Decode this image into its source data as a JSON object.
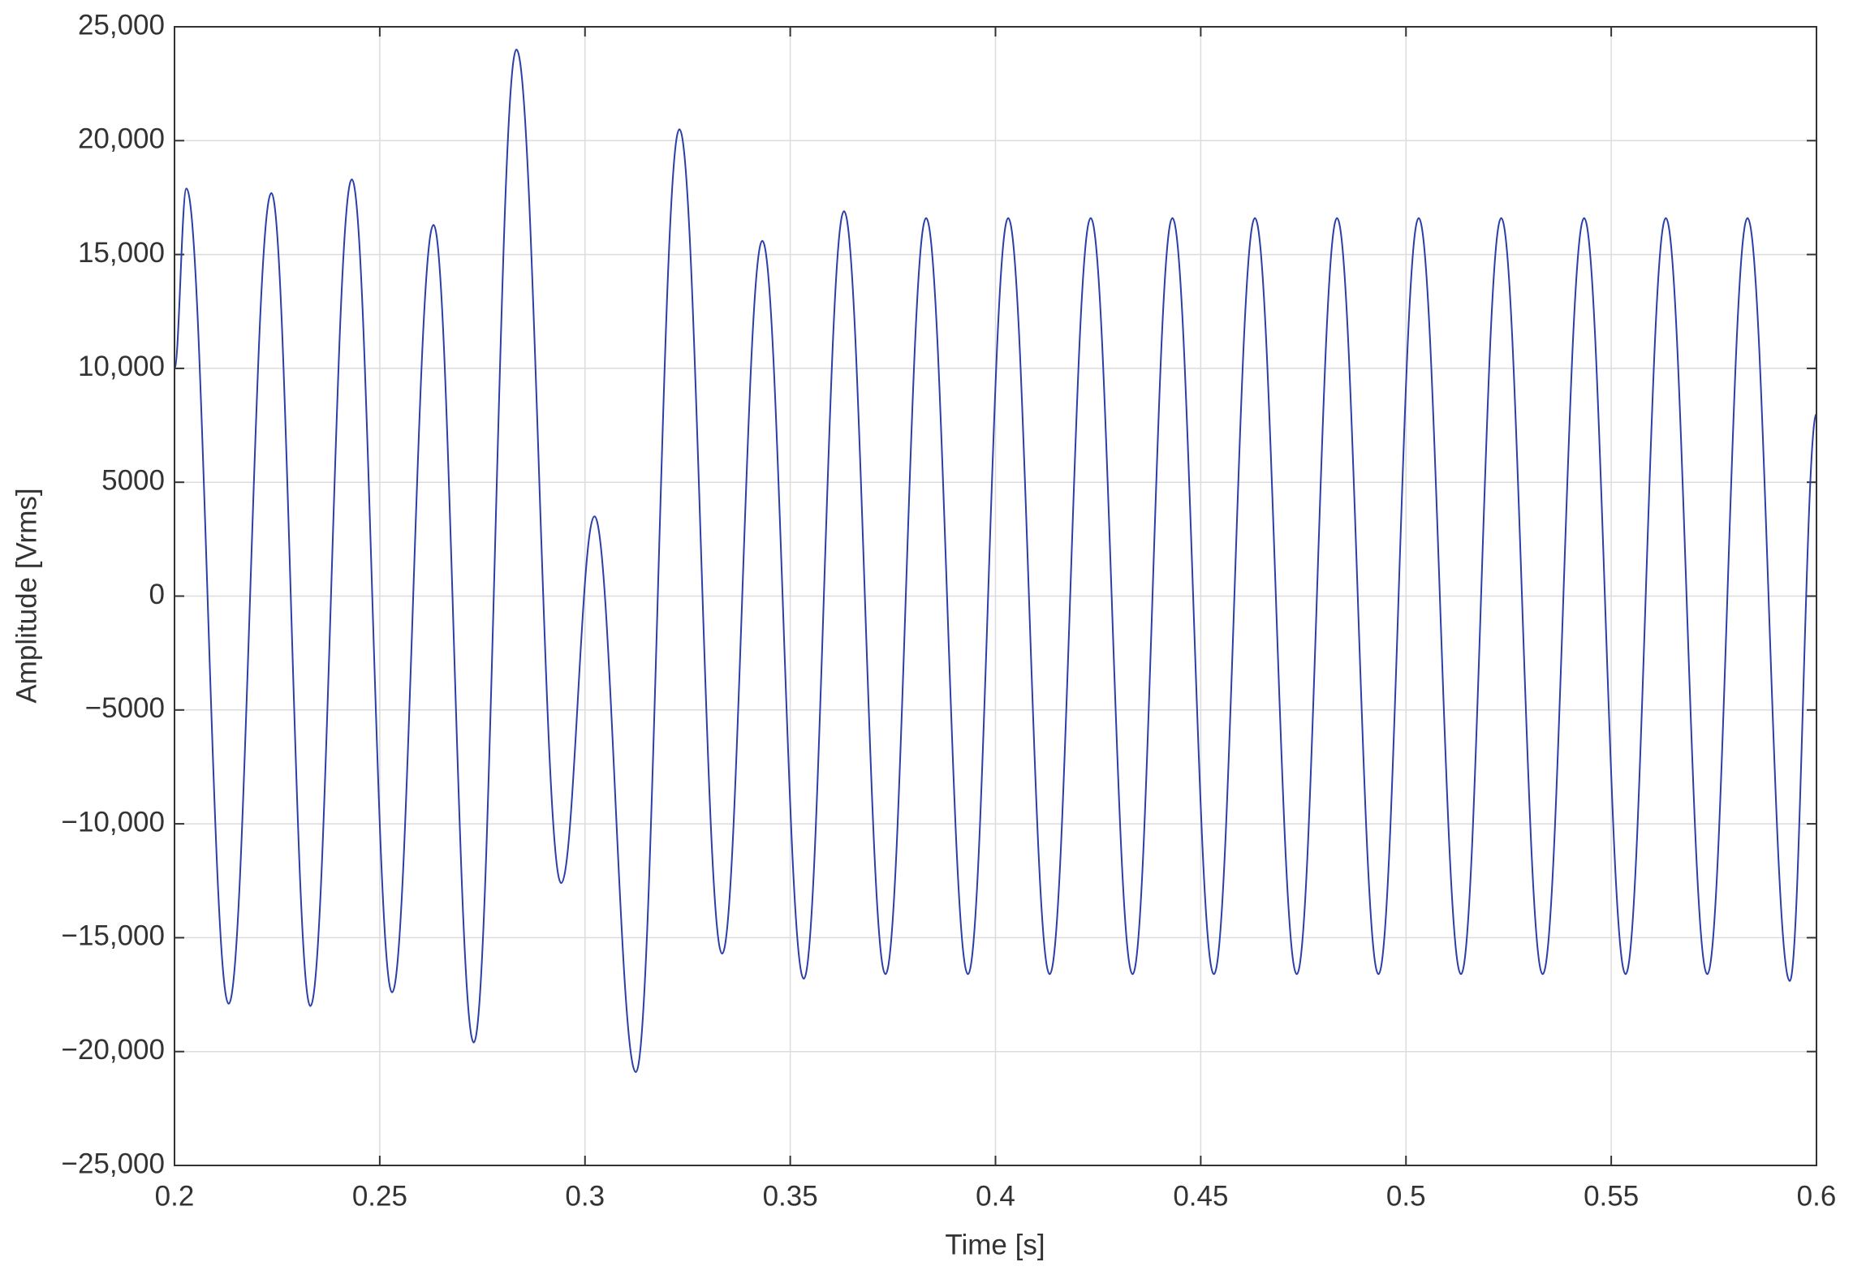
{
  "chart_data": {
    "type": "line",
    "x_label": "Time [s]",
    "y_label": "Amplitude [Vrms]",
    "x": [
      0.2,
      0.2029,
      0.2132,
      0.2236,
      0.2331,
      0.2432,
      0.253,
      0.2631,
      0.2729,
      0.2833,
      0.2942,
      0.3023,
      0.3124,
      0.323,
      0.3334,
      0.3432,
      0.3533,
      0.3631,
      0.3732,
      0.3831,
      0.3933,
      0.4031,
      0.4132,
      0.4232,
      0.4334,
      0.4431,
      0.4532,
      0.4632,
      0.4734,
      0.4832,
      0.4933,
      0.5031,
      0.5134,
      0.5232,
      0.5333,
      0.5434,
      0.5535,
      0.5633,
      0.5734,
      0.5832,
      0.5935,
      0.6
    ],
    "values": [
      10000,
      17900,
      -17900,
      17700,
      -18000,
      18300,
      -17400,
      16300,
      -19600,
      24000,
      -12600,
      3500,
      -20900,
      20500,
      -15700,
      15600,
      -16800,
      16900,
      -16600,
      16600,
      -16600,
      16600,
      -16600,
      16600,
      -16600,
      16600,
      -16600,
      16600,
      -16600,
      16600,
      -16600,
      16600,
      -16600,
      16600,
      -16600,
      16600,
      -16600,
      16600,
      -16600,
      16600,
      -16900,
      8000
    ],
    "color": "#2a3fa8",
    "xlim": [
      0.2,
      0.6
    ],
    "xticks": [
      0.2,
      0.25,
      0.3,
      0.35,
      0.4,
      0.45,
      0.5,
      0.55,
      0.6
    ],
    "ylim": [
      -25000,
      25000
    ],
    "yticks": [
      {
        "value": -25000,
        "label": "−25,000"
      },
      {
        "value": -20000,
        "label": "−20,000"
      },
      {
        "value": -15000,
        "label": "−15,000"
      },
      {
        "value": -10000,
        "label": "−10,000"
      },
      {
        "value": -5000,
        "label": "−5000"
      },
      0,
      5000,
      {
        "value": 10000,
        "label": "10,000"
      },
      {
        "value": 15000,
        "label": "15,000"
      },
      {
        "value": 20000,
        "label": "20,000"
      },
      {
        "value": 25000,
        "label": "25,000"
      }
    ],
    "grid": true
  }
}
